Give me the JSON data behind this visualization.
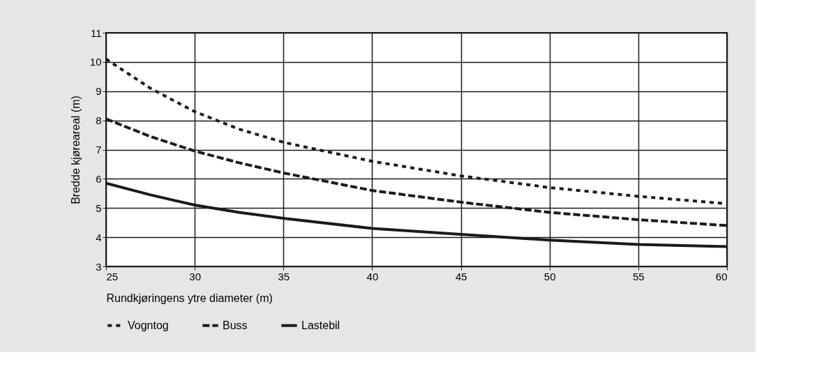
{
  "chart_data": {
    "type": "line",
    "xlabel": "Rundkjøringens ytre diameter (m)",
    "ylabel": "Bredde kjøreareal (m)",
    "x": [
      25,
      27.5,
      30,
      32.5,
      35,
      40,
      45,
      50,
      55,
      60
    ],
    "series": [
      {
        "name": "Vogntog",
        "color": "#1a1a1a",
        "line_style": "dotted",
        "values": [
          10.1,
          9.1,
          8.3,
          7.7,
          7.25,
          6.6,
          6.1,
          5.7,
          5.4,
          5.15
        ]
      },
      {
        "name": "Buss",
        "color": "#1a1a1a",
        "line_style": "dashed",
        "values": [
          8.05,
          7.45,
          6.95,
          6.55,
          6.2,
          5.6,
          5.2,
          4.85,
          4.6,
          4.4
        ]
      },
      {
        "name": "Lastebil",
        "color": "#1a1a1a",
        "line_style": "solid",
        "values": [
          5.85,
          5.45,
          5.1,
          4.85,
          4.65,
          4.3,
          4.1,
          3.9,
          3.75,
          3.68
        ]
      }
    ],
    "xlim": [
      25,
      60
    ],
    "xticks": [
      25,
      30,
      35,
      40,
      45,
      50,
      55,
      60
    ],
    "ylim": [
      3,
      11
    ],
    "yticks": [
      3,
      4,
      5,
      6,
      7,
      8,
      9,
      10,
      11
    ],
    "grid": true,
    "legend": "bottom",
    "marker": "none"
  }
}
